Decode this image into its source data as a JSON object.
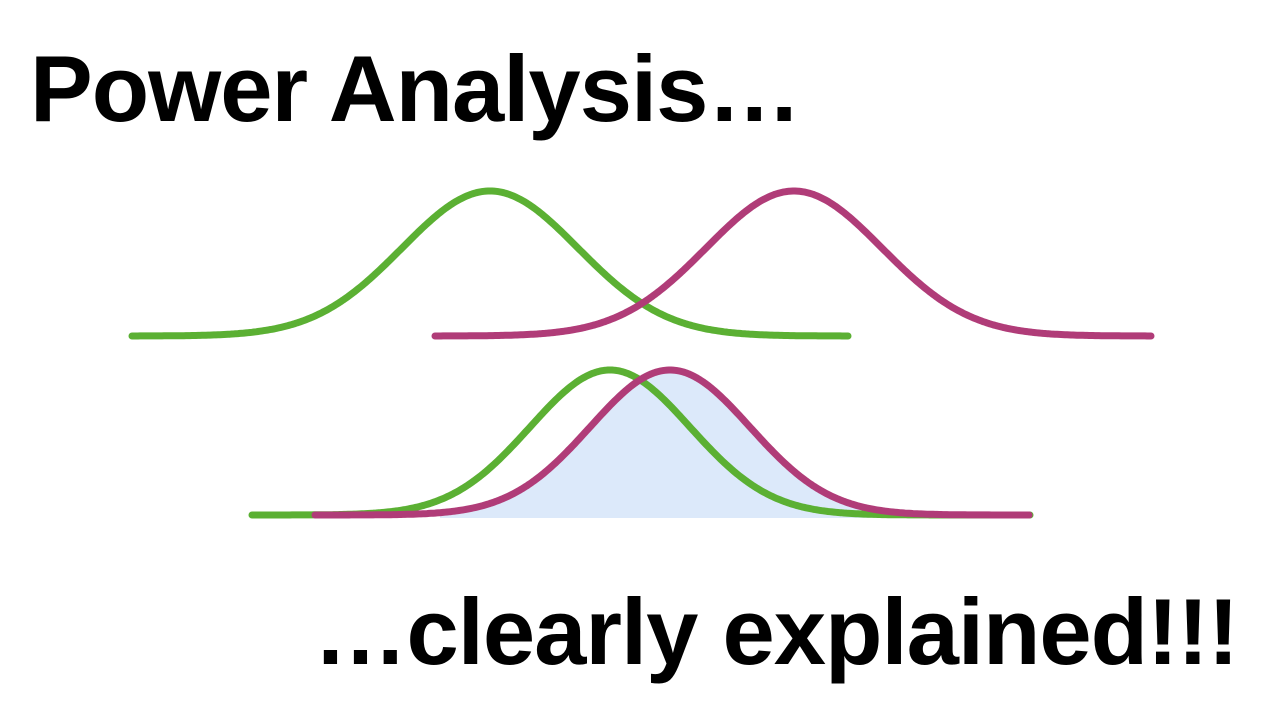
{
  "title": "Power Analysis…",
  "subtitle": "…clearly explained!!!",
  "colors": {
    "green": "#5bb033",
    "magenta": "#b03c78",
    "overlap_fill": "#dce9fa",
    "text": "#000000",
    "background": "#ffffff"
  }
}
